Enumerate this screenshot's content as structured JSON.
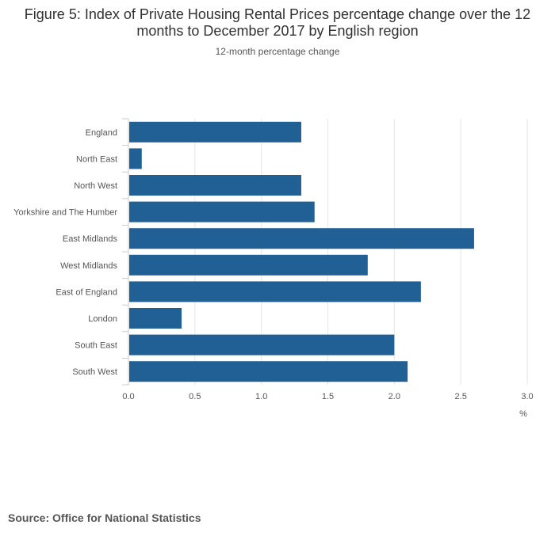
{
  "title": "Figure 5: Index of Private Housing Rental Prices percentage change over the 12 months to December 2017 by English region",
  "subtitle": "12-month percentage change",
  "source": "Source: Office for National Statistics",
  "colors": {
    "bar": "#206095",
    "grid": "#e6e6e6",
    "axis_text": "#555555"
  },
  "chart_data": {
    "type": "bar",
    "orientation": "horizontal",
    "categories": [
      "England",
      "North East",
      "North West",
      "Yorkshire and The Humber",
      "East Midlands",
      "West Midlands",
      "East of England",
      "London",
      "South East",
      "South West"
    ],
    "values": [
      1.3,
      0.1,
      1.3,
      1.4,
      2.6,
      1.8,
      2.2,
      0.4,
      2.0,
      2.1
    ],
    "xlabel": "%",
    "ylabel": "",
    "xlim": [
      0,
      3.0
    ],
    "xticks": [
      "0.0",
      "0.5",
      "1.0",
      "1.5",
      "2.0",
      "2.5",
      "3.0"
    ],
    "grid": true,
    "legend": "none"
  }
}
